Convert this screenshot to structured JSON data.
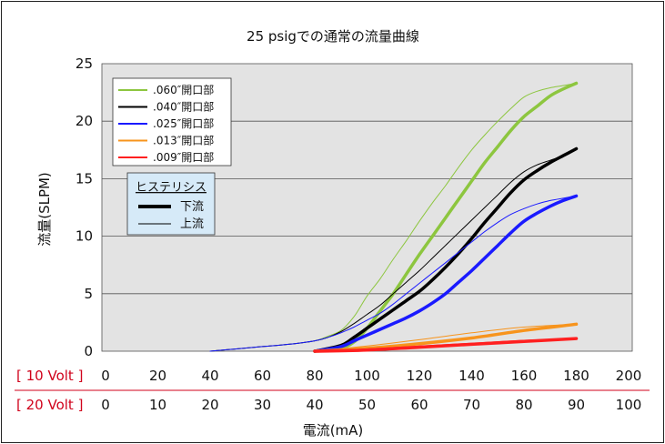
{
  "chart_data": {
    "type": "line",
    "title": "25 psigでの通常の流量曲線",
    "ylabel": "流量(SLPM)",
    "xlabel": "電流(mA)",
    "ylim": [
      0,
      25
    ],
    "xlim": [
      0,
      200
    ],
    "y_ticks": [
      "0",
      "5",
      "10",
      "15",
      "20",
      "25"
    ],
    "x_rows": [
      {
        "label": "[ 10 Volt ]",
        "ticks": [
          "0",
          "20",
          "40",
          "60",
          "80",
          "100",
          "120",
          "140",
          "160",
          "180",
          "200"
        ]
      },
      {
        "label": "[ 20 Volt ]",
        "ticks": [
          "0",
          "10",
          "20",
          "30",
          "40",
          "50",
          "60",
          "70",
          "80",
          "90",
          "100"
        ]
      }
    ],
    "grid": "horizontal",
    "legend_position": "top-left",
    "hysteresis_legend": {
      "title": "ヒステリシス",
      "entries": [
        {
          "label": "下流",
          "style": "thick"
        },
        {
          "label": "上流",
          "style": "thin"
        }
      ]
    },
    "series": [
      {
        "name": ".060″開口部",
        "color": "#8dc63f",
        "thick": {
          "x": [
            80,
            90,
            95,
            100,
            105,
            110,
            115,
            120,
            125,
            130,
            135,
            140,
            145,
            150,
            155,
            160,
            165,
            170,
            175,
            180
          ],
          "y": [
            0,
            0.3,
            0.8,
            2.0,
            3.5,
            5.0,
            6.7,
            8.4,
            10.0,
            11.6,
            13.2,
            14.8,
            16.4,
            17.8,
            19.2,
            20.4,
            21.3,
            22.2,
            22.8,
            23.3
          ]
        },
        "thin": {
          "x": [
            40,
            50,
            60,
            70,
            80,
            85,
            90,
            95,
            100,
            105,
            110,
            115,
            120,
            125,
            130,
            135,
            140,
            145,
            150,
            155,
            160,
            165,
            170,
            175,
            180
          ],
          "y": [
            0,
            0.2,
            0.4,
            0.6,
            0.9,
            1.3,
            1.8,
            3.0,
            4.8,
            6.3,
            8.0,
            9.6,
            11.3,
            12.9,
            14.4,
            16.0,
            17.5,
            18.8,
            20.0,
            21.1,
            22.1,
            22.6,
            22.9,
            23.1,
            23.3
          ]
        }
      },
      {
        "name": ".040″開口部",
        "color": "#000000",
        "thick": {
          "x": [
            80,
            90,
            95,
            100,
            105,
            110,
            115,
            120,
            125,
            130,
            135,
            140,
            145,
            150,
            155,
            160,
            165,
            170,
            175,
            180
          ],
          "y": [
            0,
            0.5,
            1.2,
            2.0,
            2.8,
            3.6,
            4.4,
            5.2,
            6.2,
            7.3,
            8.5,
            9.8,
            11.2,
            12.5,
            13.8,
            14.9,
            15.7,
            16.4,
            17.0,
            17.6
          ]
        },
        "thin": {
          "x": [
            40,
            50,
            60,
            70,
            80,
            85,
            90,
            95,
            100,
            105,
            110,
            115,
            120,
            125,
            130,
            135,
            140,
            145,
            150,
            155,
            160,
            165,
            170,
            175,
            180
          ],
          "y": [
            0,
            0.2,
            0.4,
            0.6,
            0.9,
            1.2,
            1.7,
            2.4,
            3.2,
            4.0,
            5.0,
            6.0,
            7.0,
            8.1,
            9.2,
            10.3,
            11.4,
            12.5,
            13.6,
            14.7,
            15.6,
            16.2,
            16.6,
            17.0,
            17.6
          ]
        }
      },
      {
        "name": ".025″開口部",
        "color": "#1a1aff",
        "thick": {
          "x": [
            80,
            90,
            95,
            100,
            105,
            110,
            115,
            120,
            125,
            130,
            135,
            140,
            145,
            150,
            155,
            160,
            165,
            170,
            175,
            180
          ],
          "y": [
            0,
            0.4,
            0.9,
            1.4,
            1.9,
            2.4,
            2.9,
            3.5,
            4.2,
            5.0,
            6.0,
            7.0,
            8.1,
            9.2,
            10.3,
            11.3,
            12.0,
            12.6,
            13.1,
            13.5
          ]
        },
        "thin": {
          "x": [
            40,
            50,
            60,
            70,
            80,
            85,
            90,
            95,
            100,
            105,
            110,
            115,
            120,
            125,
            130,
            135,
            140,
            145,
            150,
            155,
            160,
            165,
            170,
            175,
            180
          ],
          "y": [
            0,
            0.2,
            0.4,
            0.6,
            0.9,
            1.2,
            1.6,
            2.1,
            2.7,
            3.3,
            4.1,
            5.0,
            5.9,
            6.8,
            7.7,
            8.6,
            9.5,
            10.4,
            11.2,
            11.9,
            12.4,
            12.8,
            13.1,
            13.3,
            13.5
          ]
        }
      },
      {
        "name": ".013″開口部",
        "color": "#f7941d",
        "thick": {
          "x": [
            80,
            100,
            120,
            140,
            160,
            180
          ],
          "y": [
            0,
            0.25,
            0.65,
            1.15,
            1.8,
            2.35
          ]
        },
        "thin": {
          "x": [
            80,
            100,
            120,
            140,
            160,
            180
          ],
          "y": [
            0,
            0.45,
            1.0,
            1.6,
            2.1,
            2.35
          ]
        }
      },
      {
        "name": ".009″開口部",
        "color": "#ff2020",
        "thick": {
          "x": [
            80,
            100,
            120,
            140,
            160,
            180
          ],
          "y": [
            0,
            0.1,
            0.35,
            0.6,
            0.85,
            1.1
          ]
        },
        "thin": {
          "x": [
            80,
            100,
            120,
            140,
            160,
            180
          ],
          "y": [
            0,
            0.2,
            0.45,
            0.7,
            0.95,
            1.1
          ]
        }
      }
    ]
  }
}
